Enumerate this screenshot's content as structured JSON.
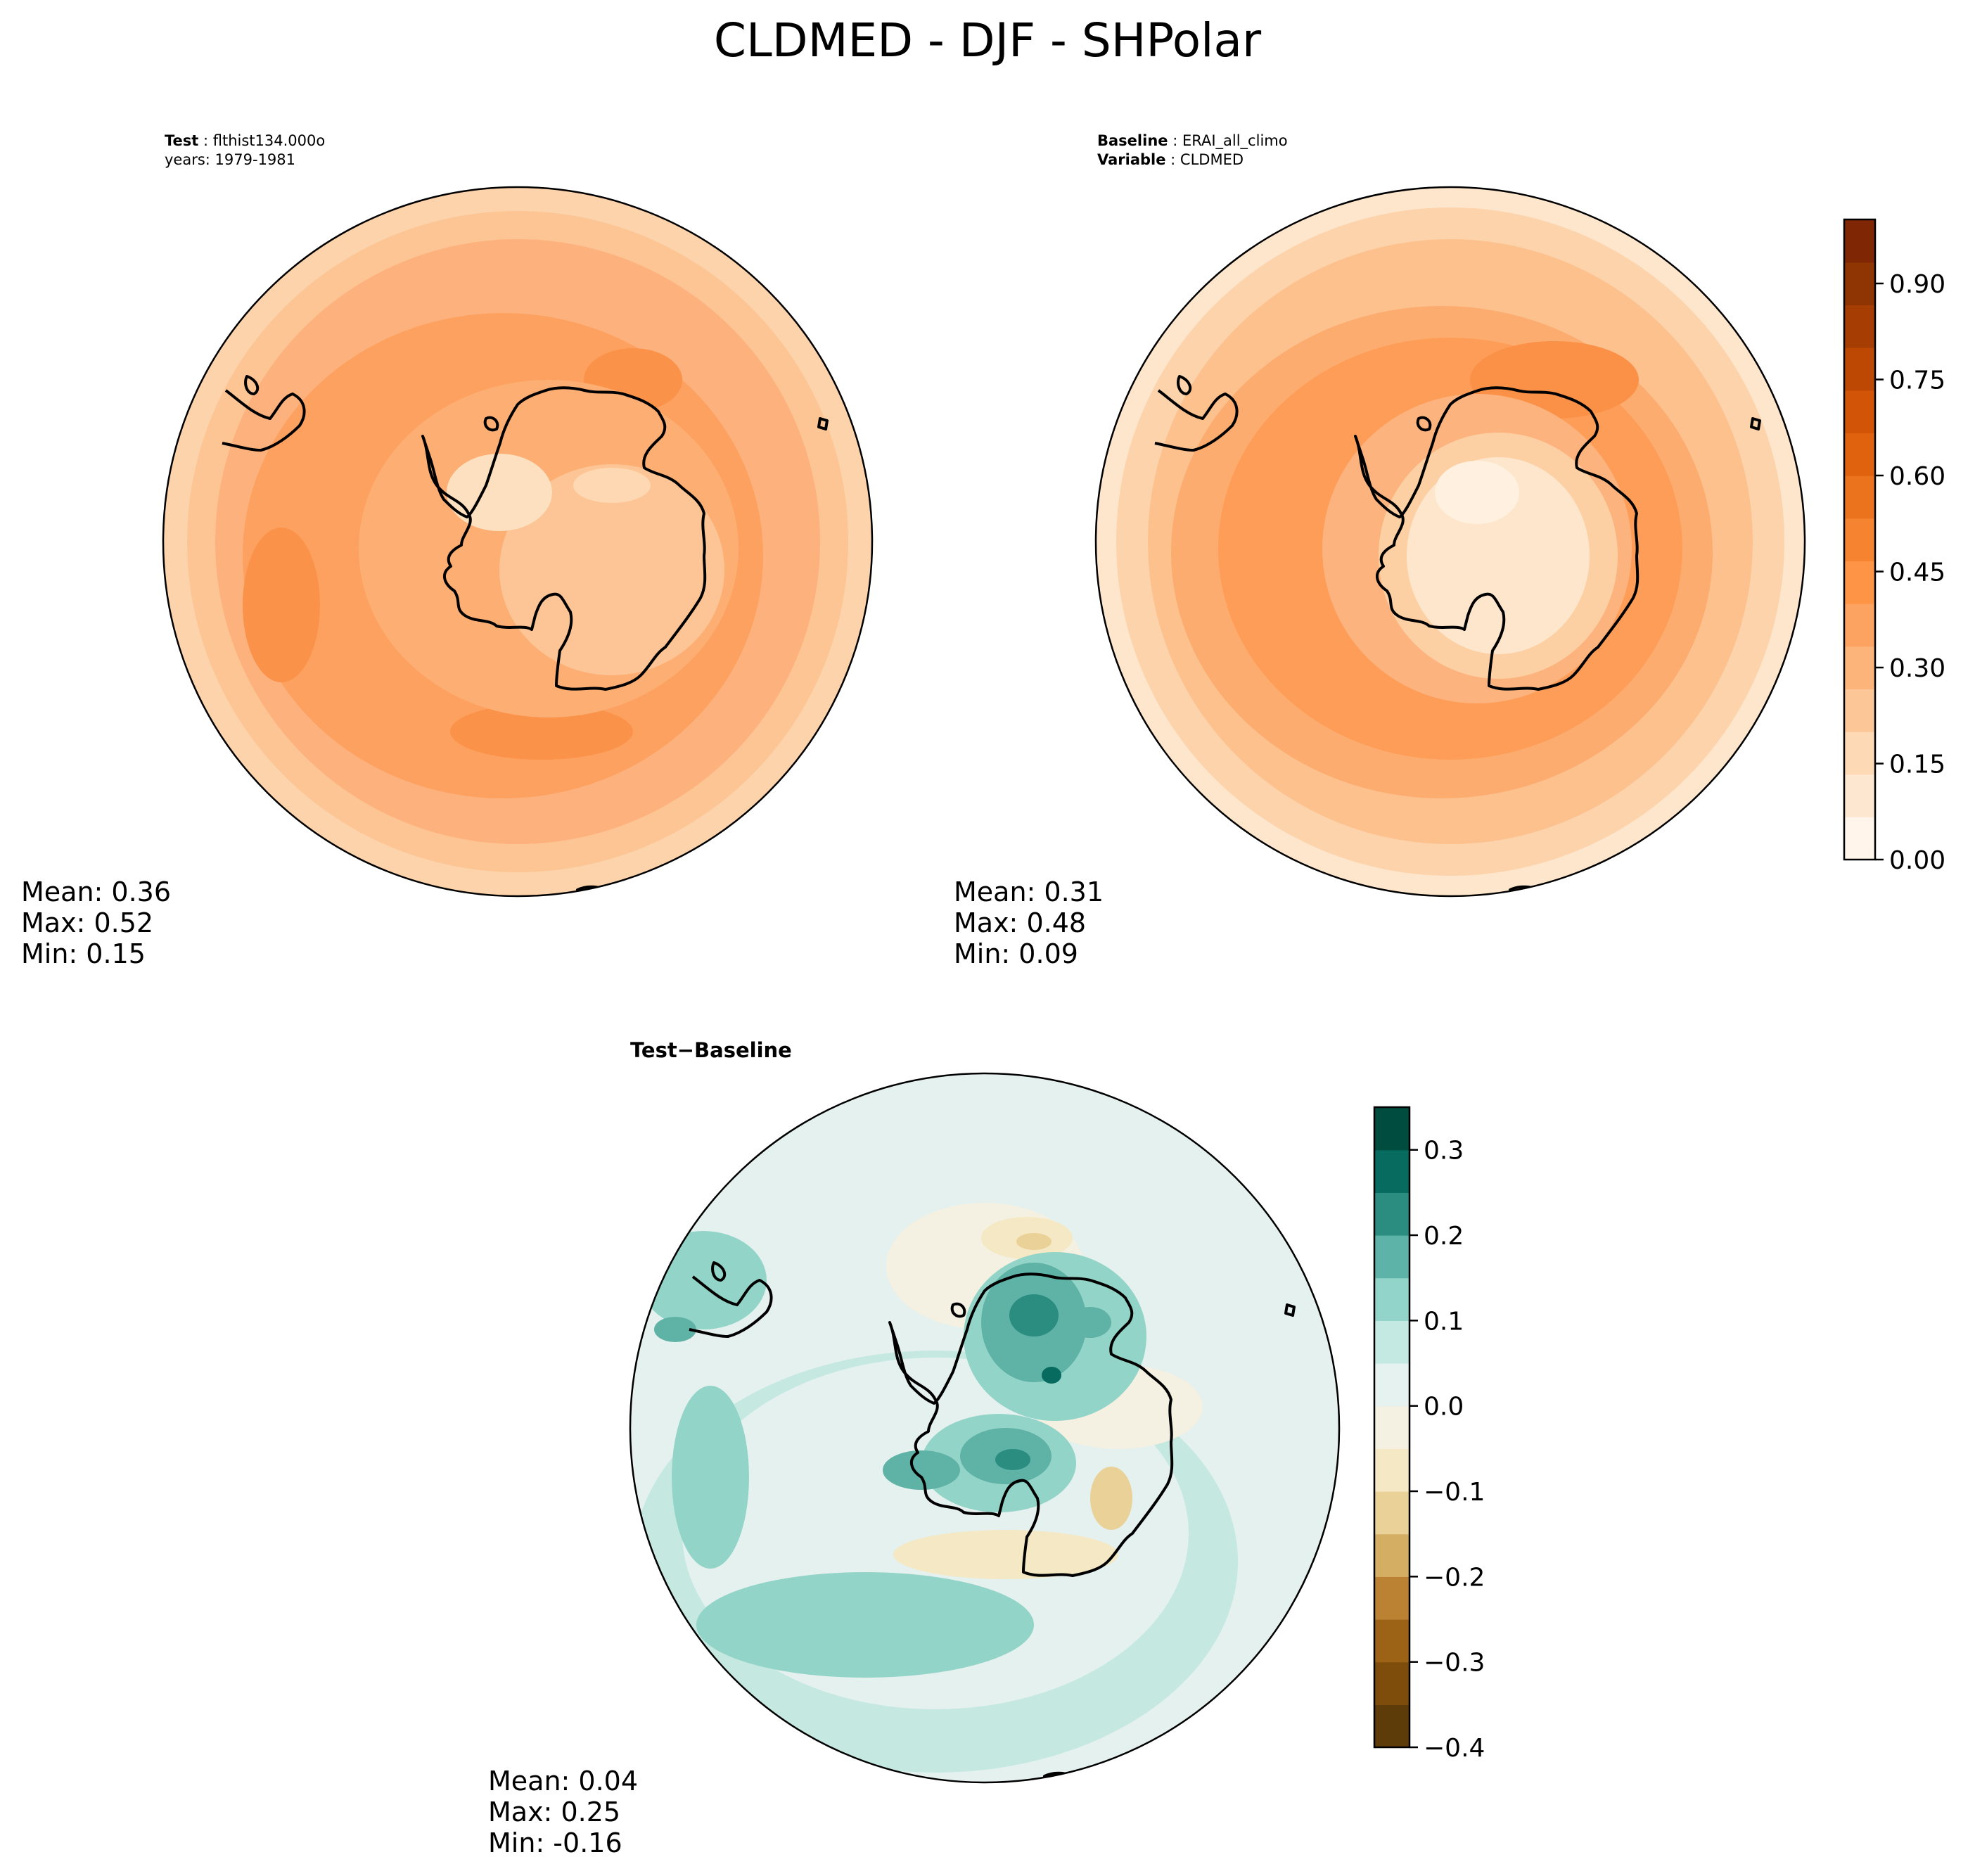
{
  "chart_data": {
    "type": "heatmap",
    "title": "CLDMED - DJF - SHPolar",
    "projection": "south polar stereographic",
    "panels": [
      {
        "id": "test",
        "label_key": "Test",
        "label_value": "flthist134.000o",
        "label2_text": "years: 1979-1981",
        "stats": {
          "mean": "Mean:  0.36",
          "max": "Max:  0.52",
          "min": "Min:  0.15"
        },
        "mean_value": 0.36,
        "max_value": 0.52,
        "min_value": 0.15
      },
      {
        "id": "baseline",
        "label_key": "Baseline",
        "label_value": "ERAI_all_climo",
        "label2_key": "Variable",
        "label2_value": "CLDMED",
        "stats": {
          "mean": "Mean:  0.31",
          "max": "Max:  0.48",
          "min": "Min:  0.09"
        },
        "mean_value": 0.31,
        "max_value": 0.48,
        "min_value": 0.09
      },
      {
        "id": "diff",
        "label_key": "Test",
        "label_op": "−",
        "label_value": "Baseline",
        "stats": {
          "mean": "Mean:  0.04",
          "max": "Max:  0.25",
          "min": "Min: -0.16"
        },
        "mean_value": 0.04,
        "max_value": 0.25,
        "min_value": -0.16
      }
    ],
    "colorbars": [
      {
        "id": "main",
        "range": [
          0.0,
          1.0
        ],
        "ticks": [
          0.0,
          0.15,
          0.3,
          0.45,
          0.6,
          0.75,
          0.9
        ],
        "tick_labels": [
          "0.00",
          "0.15",
          "0.30",
          "0.45",
          "0.60",
          "0.75",
          "0.90"
        ],
        "colors": [
          "#fff5eb",
          "#fee7d0",
          "#fdd9b5",
          "#fdc696",
          "#fdb47b",
          "#fda361",
          "#fd9446",
          "#f5832f",
          "#ec731e",
          "#e0620f",
          "#d25507",
          "#bd4803",
          "#a63d03",
          "#8f3403",
          "#7f2704"
        ]
      },
      {
        "id": "diff",
        "range": [
          -0.4,
          0.35
        ],
        "ticks": [
          -0.4,
          -0.3,
          -0.2,
          -0.1,
          0.0,
          0.1,
          0.2,
          0.3
        ],
        "tick_labels": [
          "−0.4",
          "−0.3",
          "−0.2",
          "−0.1",
          "0.0",
          "0.1",
          "0.2",
          "0.3"
        ],
        "colors": [
          "#5e3c09",
          "#7e4d0c",
          "#9c6316",
          "#bb8234",
          "#d4ae63",
          "#e9d197",
          "#f5e8c4",
          "#f4f0e2",
          "#e5f2ef",
          "#c4e9e3",
          "#93d4ca",
          "#5eb3a8",
          "#2a8d80",
          "#076b5f",
          "#004c3f"
        ]
      }
    ]
  }
}
